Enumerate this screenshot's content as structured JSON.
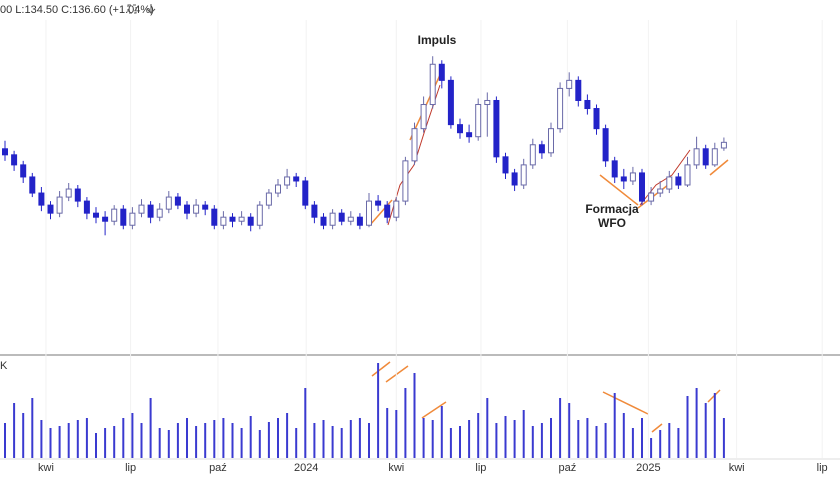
{
  "header": {
    "ohlc_text": "00 L:134.50 C:136.60 (+1.04%)"
  },
  "chart_data": {
    "type": "candlestick",
    "annotations": [
      "Impuls",
      "Formacja",
      "WFO"
    ],
    "volume_label": "K",
    "up_color": "#ffffff",
    "up_outline": "#6a6aa8",
    "down_color": "#2323c8",
    "volume_color": "#3a3ad0",
    "xlim": [
      -0.5,
      91.8
    ],
    "xticks": [
      {
        "value": 4.5,
        "label": "kwi"
      },
      {
        "value": 13.8,
        "label": "lip"
      },
      {
        "value": 23.4,
        "label": "paź"
      },
      {
        "value": 33.1,
        "label": "2024"
      },
      {
        "value": 43,
        "label": "kwi"
      },
      {
        "value": 52.3,
        "label": "lip"
      },
      {
        "value": 61.8,
        "label": "paź"
      },
      {
        "value": 70.7,
        "label": "2025"
      },
      {
        "value": 80.4,
        "label": "kwi"
      },
      {
        "value": 89.8,
        "label": "lip"
      }
    ],
    "ylim": [
      85,
      167
    ],
    "volume_ylim": [
      0,
      100
    ],
    "open": [
      135,
      133.5,
      131,
      128,
      124,
      121,
      119,
      123,
      125,
      122,
      119,
      118,
      117,
      120,
      116,
      119,
      121,
      118,
      120,
      123,
      121,
      119,
      121,
      120,
      116,
      118,
      117,
      118,
      116,
      121,
      124,
      126,
      128,
      127,
      121,
      118,
      116,
      119,
      117,
      118,
      116,
      122,
      121,
      118,
      122,
      132,
      140,
      146,
      156,
      152,
      141,
      139,
      138,
      146,
      147,
      133,
      129,
      126,
      131,
      136,
      134,
      140,
      150,
      152,
      147,
      145,
      140,
      132,
      128,
      127,
      129,
      122,
      124,
      125,
      128,
      126,
      131,
      135,
      131,
      135.2
    ],
    "high": [
      137,
      134.5,
      132,
      129,
      125.5,
      122,
      124.5,
      126.5,
      126,
      123,
      120.5,
      119.5,
      121,
      121,
      120.5,
      122.5,
      122,
      121.5,
      124.5,
      124,
      122,
      122.5,
      122,
      121,
      119.5,
      119,
      119.5,
      119,
      122,
      125,
      127.5,
      130,
      129,
      128,
      122,
      119,
      120,
      120,
      119.5,
      119,
      124,
      123.5,
      122,
      123,
      133,
      141.5,
      148,
      158,
      157,
      153,
      142.5,
      141,
      147.5,
      149,
      148,
      134,
      130,
      132.5,
      137.5,
      137,
      141.5,
      151.5,
      154,
      153,
      148.5,
      146,
      141,
      133,
      130,
      130.5,
      130,
      125.5,
      127,
      129.5,
      129,
      133,
      138,
      136,
      136.5,
      137.8
    ],
    "low": [
      132,
      129.5,
      126.5,
      123,
      119.5,
      117.5,
      118,
      122,
      120.5,
      117.5,
      116.5,
      113.5,
      116,
      115,
      115,
      118,
      116.5,
      117,
      119,
      120,
      117.5,
      118,
      118.5,
      115,
      115,
      115.5,
      116,
      114.5,
      115,
      120,
      123,
      125,
      125.5,
      120,
      116.5,
      115,
      115,
      116,
      116,
      115,
      115.5,
      119.5,
      116.5,
      117,
      121,
      131,
      139,
      145,
      150,
      140,
      137.5,
      136.5,
      137,
      138,
      131.5,
      127.5,
      124.5,
      125,
      130,
      132.5,
      133,
      139,
      148,
      145.5,
      143.5,
      138.5,
      130.5,
      126.5,
      125,
      126,
      121,
      121,
      123,
      124,
      125,
      125.5,
      130,
      130,
      130.5,
      134.5
    ],
    "close": [
      133.5,
      131,
      128,
      124,
      121,
      119,
      123,
      125,
      122,
      119,
      118,
      117,
      120,
      116,
      119,
      121,
      118,
      120,
      123,
      121,
      119,
      121,
      120,
      116,
      118,
      117,
      118,
      116,
      121,
      124,
      126,
      128,
      127,
      121,
      118,
      116,
      119,
      117,
      118,
      116,
      122,
      121,
      118,
      122,
      132,
      140,
      146,
      156,
      152,
      141,
      139,
      138,
      146,
      147,
      133,
      129,
      126,
      131,
      136,
      134,
      140,
      150,
      152,
      147,
      145,
      140,
      132,
      128,
      127,
      129,
      122,
      124,
      125,
      128,
      126,
      131,
      135,
      131,
      135,
      136.6
    ],
    "volume": [
      35,
      55,
      45,
      60,
      38,
      30,
      32,
      35,
      38,
      40,
      25,
      30,
      32,
      40,
      45,
      35,
      60,
      30,
      28,
      35,
      40,
      32,
      35,
      38,
      40,
      35,
      30,
      42,
      28,
      36,
      40,
      45,
      30,
      70,
      35,
      38,
      32,
      30,
      38,
      40,
      35,
      95,
      50,
      48,
      70,
      85,
      40,
      38,
      52,
      30,
      32,
      38,
      45,
      60,
      35,
      42,
      38,
      48,
      32,
      35,
      40,
      60,
      55,
      38,
      40,
      32,
      35,
      65,
      45,
      30,
      40,
      20,
      28,
      35,
      30,
      62,
      70,
      55,
      65,
      40
    ]
  }
}
